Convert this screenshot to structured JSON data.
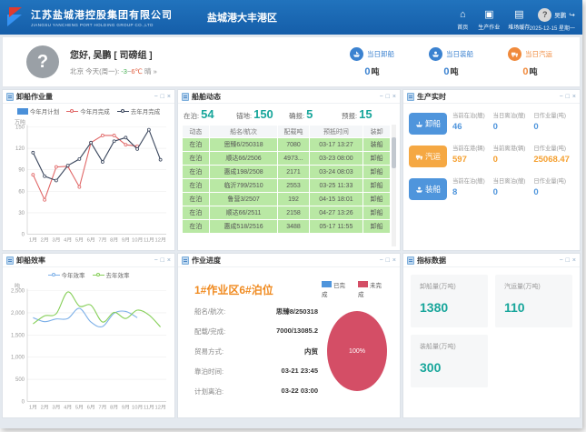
{
  "panel_controls": {
    "minimize": "−",
    "expand": "□",
    "close": "×"
  },
  "header": {
    "company_cn": "江苏盐城港控股集团有限公司",
    "company_en": "JIANGSU YANCHENG PORT HOLDING GROUP CO.,LTD",
    "site_title": "盐城港大丰港区",
    "nav": [
      {
        "label": "首页",
        "icon": "home-icon",
        "glyph": "⌂"
      },
      {
        "label": "生产作业",
        "icon": "production-icon",
        "glyph": "▣"
      },
      {
        "label": "堆场缓存",
        "icon": "yard-icon",
        "glyph": "▤"
      }
    ],
    "user_name": "吴鹏",
    "avatar_glyph": "?",
    "logout_glyph": "↪",
    "date": "2025-12-15",
    "weekday": "星期一"
  },
  "userbar": {
    "greeting": "您好, 吴鹏 [ 司磅组 ]",
    "weather_city": "北京",
    "weather_day": "今天(周一):",
    "weather_low": "-3",
    "weather_tilde": "~",
    "weather_high": "6℃",
    "weather_cond": "晴 »",
    "stats": [
      {
        "label": "当日卸船",
        "value": "0",
        "unit": "吨",
        "color": "#3b82d0",
        "icon": "unload-ship-icon"
      },
      {
        "label": "当日装船",
        "value": "0",
        "unit": "吨",
        "color": "#3b82d0",
        "icon": "load-ship-icon"
      },
      {
        "label": "当日汽运",
        "value": "0",
        "unit": "吨",
        "color": "#f08a3c",
        "icon": "truck-icon"
      }
    ]
  },
  "panels": {
    "unload_volume": {
      "title": "卸船作业量"
    },
    "ships": {
      "title": "船舶动态",
      "stats": [
        {
          "label": "在泊:",
          "value": "54"
        },
        {
          "label": "锚地:",
          "value": "150"
        },
        {
          "label": "确报:",
          "value": "5"
        },
        {
          "label": "预报:",
          "value": "15"
        }
      ],
      "columns": [
        "动态",
        "船名/航次",
        "配载吨",
        "预抵时间",
        "装卸"
      ],
      "rows": [
        [
          "在泊",
          "思臻6/250318",
          "7080",
          "03-17 13:27",
          "装船"
        ],
        [
          "在泊",
          "顺达66/2506",
          "4973...",
          "03-23 08:00",
          "卸船"
        ],
        [
          "在泊",
          "惠成198/2508",
          "2171",
          "03-24 08:03",
          "卸船"
        ],
        [
          "在泊",
          "临沂799/2510",
          "2553",
          "03-25 11:33",
          "卸船"
        ],
        [
          "在泊",
          "鲁营3/2507",
          "192",
          "04-15 18:01",
          "卸船"
        ],
        [
          "在泊",
          "顺达66/2511",
          "2158",
          "04-27 13:26",
          "卸船"
        ],
        [
          "在泊",
          "惠成518/2516",
          "3488",
          "05-17 11:55",
          "卸船"
        ]
      ]
    },
    "production": {
      "title": "生产实时",
      "rows": [
        {
          "button": "卸船",
          "color": "#4f95dc",
          "value_color": "#4f95dc",
          "icon": "unload-ship-icon",
          "metrics": [
            {
              "label": "当前在泊(艘)",
              "value": "46"
            },
            {
              "label": "当日离泊(艘)",
              "value": "0"
            },
            {
              "label": "日作业量(吨)",
              "value": "0"
            }
          ]
        },
        {
          "button": "汽运",
          "color": "#f5a843",
          "value_color": "#f5a030",
          "icon": "truck-icon",
          "metrics": [
            {
              "label": "当前在港(辆)",
              "value": "597"
            },
            {
              "label": "当前离港(辆)",
              "value": "0"
            },
            {
              "label": "日作业量(吨)",
              "value": "25068.47"
            }
          ]
        },
        {
          "button": "装船",
          "color": "#4f95dc",
          "value_color": "#4f95dc",
          "icon": "load-ship-icon",
          "metrics": [
            {
              "label": "当前在泊(艘)",
              "value": "8"
            },
            {
              "label": "当日离泊(艘)",
              "value": "0"
            },
            {
              "label": "日作业量(吨)",
              "value": "0"
            }
          ]
        }
      ]
    },
    "efficiency": {
      "title": "卸船效率"
    },
    "progress": {
      "title": "作业进度",
      "berth_title": "1#作业区6#泊位",
      "fields": [
        {
          "label": "船名/航次:",
          "value": "思臻8/250318"
        },
        {
          "label": "配载/完成:",
          "value": "7000/13085.2"
        },
        {
          "label": "贸易方式:",
          "value": "内贸"
        },
        {
          "label": "靠泊时间:",
          "value": "03-21 23:45"
        },
        {
          "label": "计划离泊:",
          "value": "03-22 03:00"
        }
      ],
      "pie": {
        "legend": [
          {
            "label": "已完成",
            "color": "#4f95dc"
          },
          {
            "label": "未完成",
            "color": "#d44e66"
          }
        ],
        "value_label": "100%",
        "incomplete_percent": 100,
        "color": "#d44e66"
      }
    },
    "metrics": {
      "title": "指标数据",
      "cards": [
        {
          "label": "卸船量(万吨)",
          "value": "1380"
        },
        {
          "label": "汽运量(万吨)",
          "value": "110"
        },
        {
          "label": "装船量(万吨)",
          "value": "300"
        }
      ]
    }
  },
  "chart_data": [
    {
      "type": "line",
      "title": "卸船作业量",
      "unit": "万吨",
      "categories": [
        "1月",
        "2月",
        "3月",
        "4月",
        "5月",
        "6月",
        "7月",
        "8月",
        "9月",
        "10月",
        "11月",
        "12月"
      ],
      "ylim": [
        0,
        150
      ],
      "yticks": [
        0,
        30,
        60,
        90,
        120,
        150
      ],
      "grid": true,
      "legend_position": "top",
      "series": [
        {
          "name": "今年月计划",
          "kind": "bar",
          "color": "#4a90d9",
          "values": []
        },
        {
          "name": "今年月完成",
          "kind": "line",
          "color": "#e06565",
          "markers": true,
          "smooth": false,
          "values": [
            83,
            48,
            94,
            95,
            66,
            128,
            138,
            138,
            125,
            123
          ]
        },
        {
          "name": "去年月完成",
          "kind": "line",
          "color": "#39455c",
          "markers": true,
          "smooth": false,
          "values": [
            114,
            81,
            75,
            96,
            105,
            128,
            101,
            130,
            135,
            119,
            146,
            104
          ]
        }
      ]
    },
    {
      "type": "line",
      "title": "卸船效率",
      "unit": "吨",
      "categories": [
        "1月",
        "2月",
        "3月",
        "4月",
        "5月",
        "6月",
        "7月",
        "8月",
        "9月",
        "10月",
        "11月",
        "12月"
      ],
      "ylim": [
        0,
        2500
      ],
      "yticks": [
        0,
        500,
        1000,
        1500,
        2000,
        2500
      ],
      "grid": true,
      "legend_position": "top",
      "series": [
        {
          "name": "今年效率",
          "kind": "line",
          "color": "#7db0e8",
          "markers": false,
          "smooth": true,
          "values": [
            1890,
            1800,
            1860,
            1870,
            2100,
            1790,
            1690,
            1990,
            2030,
            1890
          ]
        },
        {
          "name": "去年效率",
          "kind": "line",
          "color": "#86cf58",
          "markers": false,
          "smooth": true,
          "values": [
            1750,
            1930,
            1980,
            2470,
            2150,
            2170,
            1790,
            2010,
            1870,
            2060,
            1950,
            1680
          ]
        }
      ]
    }
  ]
}
